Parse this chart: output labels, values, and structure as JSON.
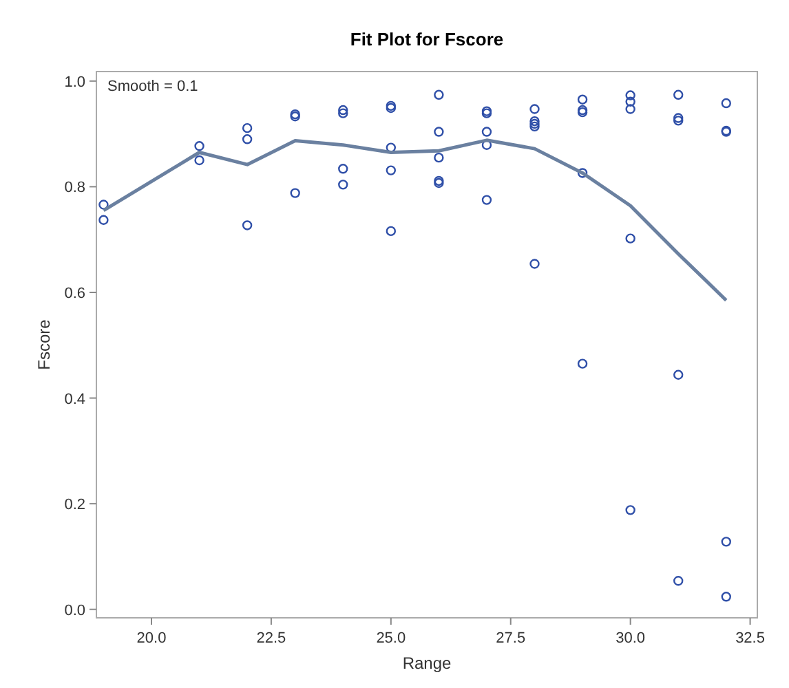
{
  "chart_data": {
    "type": "scatter",
    "title": "Fit Plot for Fscore",
    "xlabel": "Range",
    "ylabel": "Fscore",
    "annotations": [
      "Smooth = 0.1"
    ],
    "xlim": [
      18.85,
      32.65
    ],
    "xticks": [
      {
        "value": 20,
        "label": "20.0"
      },
      {
        "value": 22.5,
        "label": "22.5"
      },
      {
        "value": 25,
        "label": "25.0"
      },
      {
        "value": 27.5,
        "label": "27.5"
      },
      {
        "value": 30,
        "label": "30.0"
      },
      {
        "value": 32.5,
        "label": "32.5"
      }
    ],
    "ylim": [
      -0.016,
      1.018
    ],
    "yticks": [
      {
        "value": 0,
        "label": "0.0"
      },
      {
        "value": 0.2,
        "label": "0.2"
      },
      {
        "value": 0.4,
        "label": "0.4"
      },
      {
        "value": 0.6,
        "label": "0.6"
      },
      {
        "value": 0.8,
        "label": "0.8"
      },
      {
        "value": 1,
        "label": "1.0"
      }
    ],
    "grid": false,
    "series": [
      {
        "marker": "circle",
        "color": "#2f4fa8",
        "x": [
          19,
          19,
          21,
          21,
          22,
          22,
          22,
          23,
          23,
          23,
          24,
          24,
          24,
          24,
          25,
          25,
          25,
          25,
          25,
          26,
          26,
          26,
          26,
          26,
          27,
          27,
          27,
          27,
          27,
          28,
          28,
          28,
          28,
          28,
          29,
          29,
          29,
          29,
          29,
          30,
          30,
          30,
          30,
          30,
          31,
          31,
          31,
          31,
          31,
          32,
          32,
          32,
          32,
          32
        ],
        "values": [
          0.766,
          0.737,
          0.877,
          0.85,
          0.911,
          0.89,
          0.727,
          0.937,
          0.933,
          0.788,
          0.945,
          0.939,
          0.834,
          0.804,
          0.953,
          0.949,
          0.874,
          0.831,
          0.716,
          0.974,
          0.904,
          0.855,
          0.811,
          0.807,
          0.943,
          0.939,
          0.904,
          0.879,
          0.775,
          0.947,
          0.924,
          0.919,
          0.914,
          0.654,
          0.965,
          0.945,
          0.941,
          0.826,
          0.465,
          0.973,
          0.961,
          0.947,
          0.702,
          0.188,
          0.974,
          0.93,
          0.925,
          0.444,
          0.054,
          0.958,
          0.906,
          0.904,
          0.128,
          0.024
        ]
      },
      {
        "type": "line",
        "marker": "none",
        "line_style": "solid",
        "color": "#6a80a0",
        "x": [
          19,
          21,
          22,
          23,
          24,
          25,
          26,
          27,
          28,
          29,
          30,
          31,
          32
        ],
        "values": [
          0.755,
          0.865,
          0.842,
          0.887,
          0.879,
          0.865,
          0.868,
          0.888,
          0.872,
          0.826,
          0.764,
          0.673,
          0.585
        ]
      }
    ]
  }
}
